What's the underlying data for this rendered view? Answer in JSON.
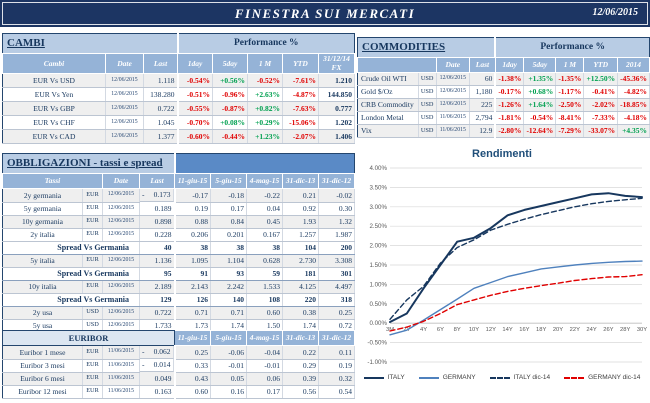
{
  "header": {
    "title": "FINESTRA SUI MERCATI",
    "date": "12/06/2015"
  },
  "cambi": {
    "title": "CAMBI",
    "perf_header": "Performance  %",
    "columns": {
      "name": "Cambi",
      "date": "Date",
      "last": "Last",
      "d1": "1day",
      "d5": "5day",
      "m1": "1 M",
      "ytd": "YTD",
      "fx": "31/12/14 FX"
    },
    "rows": [
      {
        "_bg": "g",
        "name": "EUR Vs USD",
        "date": "12/06/2015",
        "last": "1.118",
        "d1": "-0.54%",
        "d5": "+0.56%",
        "m1": "-0.52%",
        "ytd": "-7.61%",
        "fx": "1.210"
      },
      {
        "name": "EUR Vs Yen",
        "date": "12/06/2015",
        "last": "138.280",
        "d1": "-0.51%",
        "d5": "-0.96%",
        "m1": "+2.63%",
        "ytd": "-4.87%",
        "fx": "144.850"
      },
      {
        "_bg": "g",
        "name": "EUR Vs GBP",
        "date": "12/06/2015",
        "last": "0.722",
        "d1": "-0.55%",
        "d5": "-0.87%",
        "m1": "+0.82%",
        "ytd": "-7.63%",
        "fx": "0.777"
      },
      {
        "name": "EUR Vs CHF",
        "date": "12/06/2015",
        "last": "1.045",
        "d1": "-0.70%",
        "d5": "+0.08%",
        "m1": "+0.29%",
        "ytd": "-15.06%",
        "fx": "1.202"
      },
      {
        "_bg": "g",
        "name": "EUR Vs CAD",
        "date": "12/06/2015",
        "last": "1.377",
        "d1": "-0.60%",
        "d5": "-0.44%",
        "m1": "+1.23%",
        "ytd": "-2.07%",
        "fx": "1.406"
      }
    ]
  },
  "commodities": {
    "title": "COMMODITIES",
    "perf_header": "Performance  %",
    "columns": {
      "date": "Date",
      "last": "Last",
      "d1": "1day",
      "d5": "5day",
      "m1": "1 M",
      "ytd": "YTD",
      "y2014": "2014"
    },
    "rows": [
      {
        "_bg": "g",
        "name": "Crude Oil WTI",
        "cur": "USD",
        "date": "12/06/2015",
        "last": "60",
        "d1": "-1.38%",
        "d5": "+1.35%",
        "m1": "-1.35%",
        "ytd": "+12.50%",
        "y2014": "-45.36%"
      },
      {
        "name": "Gold $/Oz",
        "cur": "USD",
        "date": "12/06/2015",
        "last": "1,180",
        "d1": "-0.17%",
        "d5": "+0.68%",
        "m1": "-1.17%",
        "ytd": "-0.41%",
        "y2014": "-4.82%"
      },
      {
        "_bg": "g",
        "name": "CRB Commodity",
        "cur": "USD",
        "date": "12/06/2015",
        "last": "225",
        "d1": "-1.26%",
        "d5": "+1.64%",
        "m1": "-2.50%",
        "ytd": "-2.02%",
        "y2014": "-18.85%"
      },
      {
        "name": "London Metal",
        "cur": "USD",
        "date": "11/06/2015",
        "last": "2,794",
        "d1": "-1.81%",
        "d5": "-0.54%",
        "m1": "-8.41%",
        "ytd": "-7.33%",
        "y2014": "-4.18%"
      },
      {
        "_bg": "g",
        "name": "Vix",
        "cur": "USD",
        "date": "11/06/2015",
        "last": "12.9",
        "d1": "-2.80%",
        "d5": "-12.64%",
        "m1": "-7.29%",
        "ytd": "-33.07%",
        "y2014": "+4.35%"
      }
    ]
  },
  "obbligazioni": {
    "title": "OBBLIGAZIONI - tassi e spread",
    "columns": {
      "label": "Tassi",
      "date": "Date",
      "last": "Last",
      "v1": "11-giu-15",
      "v2": "5-giu-15",
      "v3": "4-mag-15",
      "v4": "31-dic-13",
      "v5": "31-dic-12"
    },
    "rows": [
      {
        "_bg": "g",
        "label": "2y germania",
        "cur": "EUR",
        "date": "12/06/2015",
        "last": "- 0.173",
        "v1": "-0.17",
        "v2": "-0.18",
        "v3": "-0.22",
        "v4": "0.21",
        "v5": "-0.02"
      },
      {
        "label": "5y germania",
        "cur": "EUR",
        "date": "12/06/2015",
        "last": "0.189",
        "v1": "0.19",
        "v2": "0.17",
        "v3": "0.04",
        "v4": "0.92",
        "v5": "0.30"
      },
      {
        "_bg": "g",
        "label": "10y germania",
        "cur": "EUR",
        "date": "12/06/2015",
        "last": "0.898",
        "v1": "0.88",
        "v2": "0.84",
        "v3": "0.45",
        "v4": "1.93",
        "v5": "1.32"
      },
      {
        "label": "2y italia",
        "cur": "EUR",
        "date": "12/06/2015",
        "last": "0.228",
        "v1": "0.206",
        "v2": "0.201",
        "v3": "0.167",
        "v4": "1.257",
        "v5": "1.987"
      },
      {
        "_cls": "spread",
        "_span": 3,
        "label": "Spread Vs Germania",
        "last": "40",
        "v1": "38",
        "v2": "38",
        "v3": "38",
        "v4": "104",
        "v5": "200"
      },
      {
        "_bg": "g",
        "label": "5y italia",
        "cur": "EUR",
        "date": "12/06/2015",
        "last": "1.136",
        "v1": "1.095",
        "v2": "1.104",
        "v3": "0.628",
        "v4": "2.730",
        "v5": "3.308"
      },
      {
        "_cls": "spread",
        "_span": 3,
        "label": "Spread Vs Germania",
        "last": "95",
        "v1": "91",
        "v2": "93",
        "v3": "59",
        "v4": "181",
        "v5": "301"
      },
      {
        "_bg": "g",
        "label": "10y italia",
        "cur": "EUR",
        "date": "12/06/2015",
        "last": "2.189",
        "v1": "2.143",
        "v2": "2.242",
        "v3": "1.533",
        "v4": "4.125",
        "v5": "4.497"
      },
      {
        "_cls": "spread",
        "_span": 3,
        "label": "Spread Vs Germania",
        "last": "129",
        "v1": "126",
        "v2": "140",
        "v3": "108",
        "v4": "220",
        "v5": "318"
      },
      {
        "_bg": "g",
        "label": "2y usa",
        "cur": "USD",
        "date": "12/06/2015",
        "last": "0.722",
        "v1": "0.71",
        "v2": "0.71",
        "v3": "0.60",
        "v4": "0.38",
        "v5": "0.25"
      },
      {
        "label": "5y usa",
        "cur": "USD",
        "date": "12/06/2015",
        "last": "1.733",
        "v1": "1.73",
        "v2": "1.74",
        "v3": "1.50",
        "v4": "1.74",
        "v5": "0.72"
      },
      {
        "_bg": "g",
        "label": "10y usa",
        "cur": "USD",
        "date": "12/06/2015",
        "last": "2.388",
        "v1": "2.38",
        "v2": "2.41",
        "v3": "2.14",
        "v4": "3.03",
        "v5": "1.76"
      }
    ]
  },
  "euribor": {
    "title": "EURIBOR",
    "columns": {
      "v1": "11-giu-15",
      "v2": "5-giu-15",
      "v3": "4-mag-15",
      "v4": "31-dic-13",
      "v5": "31-dic-12"
    },
    "rows": [
      {
        "_bg": "g",
        "label": "Euribor 1 mese",
        "cur": "EUR",
        "date": "11/06/2015",
        "last": "- 0.062",
        "v1": "0.25",
        "v2": "-0.06",
        "v3": "-0.04",
        "v4": "0.22",
        "v5": "0.11"
      },
      {
        "label": "Euribor 3 mesi",
        "cur": "EUR",
        "date": "11/06/2015",
        "last": "- 0.014",
        "v1": "0.33",
        "v2": "-0.01",
        "v3": "-0.01",
        "v4": "0.29",
        "v5": "0.19"
      },
      {
        "_bg": "g",
        "label": "Euribor 6 mesi",
        "cur": "EUR",
        "date": "11/06/2015",
        "last": "0.049",
        "v1": "0.43",
        "v2": "0.05",
        "v3": "0.06",
        "v4": "0.39",
        "v5": "0.32"
      },
      {
        "label": "Euribor 12 mesi",
        "cur": "EUR",
        "date": "11/06/2015",
        "last": "0.163",
        "v1": "0.60",
        "v2": "0.16",
        "v3": "0.17",
        "v4": "0.56",
        "v5": "0.54"
      }
    ]
  },
  "chart_data": {
    "type": "line",
    "title": "Rendimenti",
    "xlabel": "",
    "ylabel": "",
    "ylim": [
      -1.0,
      4.0
    ],
    "grid": true,
    "legend_position": "bottom",
    "y_ticks": [
      "4.00%",
      "3.50%",
      "3.00%",
      "2.50%",
      "2.00%",
      "1.50%",
      "1.00%",
      "0.50%",
      "0.00%",
      "-0.50%",
      "-1.00%"
    ],
    "categories": [
      "3M",
      "2Y",
      "4Y",
      "6Y",
      "8Y",
      "10Y",
      "12Y",
      "14Y",
      "16Y",
      "18Y",
      "20Y",
      "22Y",
      "24Y",
      "26Y",
      "28Y",
      "30Y"
    ],
    "series": [
      {
        "name": "ITALY",
        "color": "#17375e",
        "dash": "solid",
        "width": 2,
        "values": [
          0.03,
          0.25,
          0.9,
          1.5,
          2.1,
          2.2,
          2.45,
          2.78,
          2.92,
          3.02,
          3.12,
          3.22,
          3.32,
          3.35,
          3.28,
          3.25
        ]
      },
      {
        "name": "GERMANY",
        "color": "#4f81bd",
        "dash": "solid",
        "width": 1.4,
        "values": [
          -0.3,
          -0.18,
          0.08,
          0.35,
          0.62,
          0.9,
          1.05,
          1.2,
          1.3,
          1.4,
          1.45,
          1.5,
          1.54,
          1.57,
          1.59,
          1.6
        ]
      },
      {
        "name": "ITALY dic-14",
        "color": "#17375e",
        "dash": "dashed",
        "width": 1.4,
        "values": [
          0.1,
          0.6,
          0.95,
          1.55,
          1.95,
          2.15,
          2.4,
          2.55,
          2.68,
          2.8,
          2.9,
          3.0,
          3.08,
          3.14,
          3.18,
          3.22
        ]
      },
      {
        "name": "GERMANY dic-14",
        "color": "#e00000",
        "dash": "dashed",
        "width": 1.4,
        "values": [
          -0.2,
          -0.1,
          0.05,
          0.25,
          0.48,
          0.6,
          0.72,
          0.82,
          0.9,
          0.97,
          1.03,
          1.1,
          1.15,
          1.19,
          1.2,
          1.25
        ]
      }
    ]
  }
}
